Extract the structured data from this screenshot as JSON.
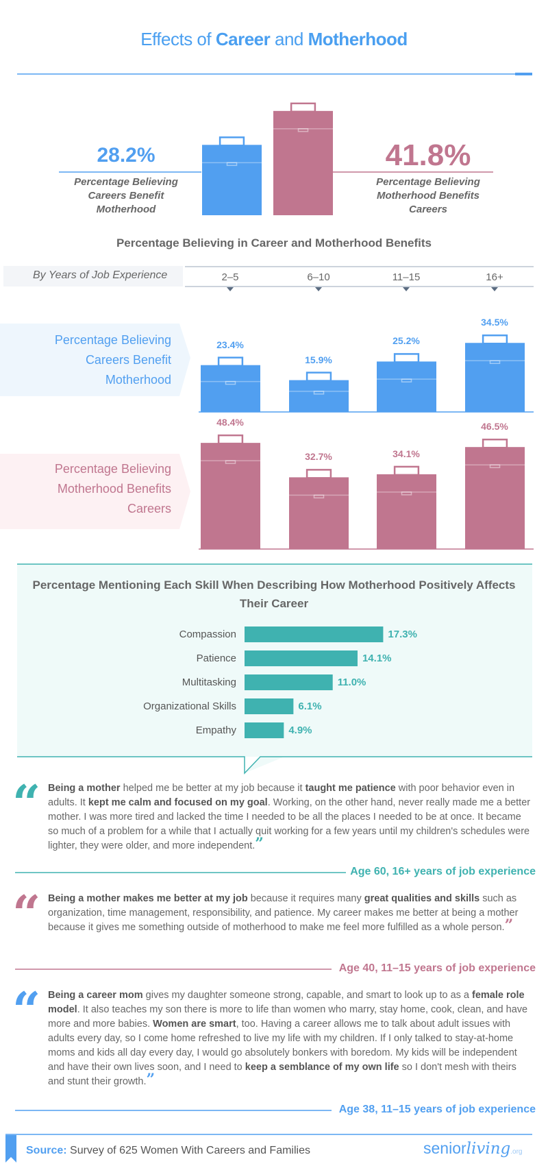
{
  "header": {
    "title_prefix": "Effects of",
    "title_career": "Career",
    "title_and": "and",
    "title_motherhood": "Motherhood"
  },
  "colors": {
    "blue": "#519ff0",
    "pink": "#c0768f",
    "teal": "#3fb2b0",
    "light_blue": "#eef6fd",
    "light_pink": "#fdf1f3",
    "light_teal": "#effaf9"
  },
  "chart_data": [
    {
      "type": "bar",
      "categories": [
        "Percentage Believing Careers Benefit Motherhood",
        "Percentage Believing Motherhood Benefits Careers"
      ],
      "values": [
        28.2,
        41.8
      ],
      "value_labels": [
        "28.2%",
        "41.8%"
      ]
    },
    {
      "type": "bar",
      "title": "Percentage Believing in Career and Motherhood Benefits",
      "xlabel": "By Years of Job Experience",
      "categories": [
        "2–5",
        "6–10",
        "11–15",
        "16+"
      ],
      "series": [
        {
          "name": "Percentage Believing Careers Benefit Motherhood",
          "values": [
            23.4,
            15.9,
            25.2,
            34.5
          ],
          "labels": [
            "23.4%",
            "15.9%",
            "25.2%",
            "34.5%"
          ]
        },
        {
          "name": "Percentage Believing Motherhood Benefits Careers",
          "values": [
            48.4,
            32.7,
            34.1,
            46.5
          ],
          "labels": [
            "48.4%",
            "32.7%",
            "34.1%",
            "46.5%"
          ]
        }
      ]
    },
    {
      "type": "bar",
      "orientation": "horizontal",
      "title": "Percentage Mentioning Each Skill When Describing How Motherhood Positively Affects Their Career",
      "categories": [
        "Compassion",
        "Patience",
        "Multitasking",
        "Organizational Skills",
        "Empathy"
      ],
      "values": [
        17.3,
        14.1,
        11.0,
        6.1,
        4.9
      ],
      "labels": [
        "17.3%",
        "14.1%",
        "11.0%",
        "6.1%",
        "4.9%"
      ]
    }
  ],
  "quotes": [
    {
      "parts": [
        {
          "b": true,
          "t": "Being a mother"
        },
        {
          "b": false,
          "t": " helped me be better at my job because it "
        },
        {
          "b": true,
          "t": "taught me patience"
        },
        {
          "b": false,
          "t": " with poor behavior even in adults. It "
        },
        {
          "b": true,
          "t": "kept me calm and focused on my goal"
        },
        {
          "b": false,
          "t": ". Working, on the other hand, never really made me a better mother. I was more tired and lacked the time I needed to be all the places I needed to be at once. It became so much of a problem for a while that I actually quit working for a few years until my children's schedules were lighter, they were older, and more independent."
        }
      ],
      "attribution": "Age 60, 16+ years of job experience"
    },
    {
      "parts": [
        {
          "b": true,
          "t": "Being a mother makes me better at my job"
        },
        {
          "b": false,
          "t": " because it requires many "
        },
        {
          "b": true,
          "t": "great qualities and skills"
        },
        {
          "b": false,
          "t": " such as organization, time management, responsibility, and patience. My career makes me better at being a mother because it gives me something outside of motherhood to make me feel more fulfilled as a whole person."
        }
      ],
      "attribution": "Age 40, 11–15 years of job experience"
    },
    {
      "parts": [
        {
          "b": true,
          "t": "Being a career mom"
        },
        {
          "b": false,
          "t": " gives my daughter someone strong, capable, and smart to look up to as a "
        },
        {
          "b": true,
          "t": "female role model"
        },
        {
          "b": false,
          "t": ". It also teaches my son there is more to life than women who marry, stay home, cook, clean, and have more and more babies. "
        },
        {
          "b": true,
          "t": "Women are smart"
        },
        {
          "b": false,
          "t": ", too. Having a career allows me to talk about adult issues with adults every day, so I come home refreshed to live my life with my children. If I only talked to stay-at-home moms and kids all day every day, I would go absolutely bonkers with boredom. My kids will be independent and have their own lives soon, and I need to "
        },
        {
          "b": true,
          "t": "keep a semblance of my own life"
        },
        {
          "b": false,
          "t": " so I don't mesh with theirs and stunt their growth."
        }
      ],
      "attribution": "Age 38, 11–15 years of job experience"
    }
  ],
  "footer": {
    "source_label": "Source:",
    "source_text": "Survey of 625 Women With Careers and Families",
    "logo_senior": "senior",
    "logo_living": "living",
    "logo_org": ".org"
  }
}
